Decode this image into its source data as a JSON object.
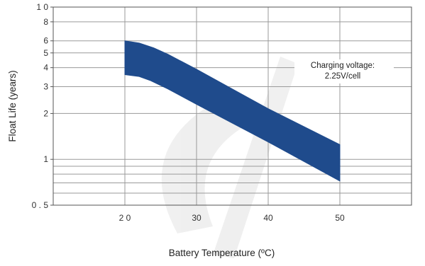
{
  "chart_data": {
    "type": "area",
    "title": "",
    "xlabel": "Battery Temperature (ºC)",
    "ylabel": "Float Life (years)",
    "xlim": [
      10,
      60
    ],
    "ylim": [
      0.5,
      10
    ],
    "y_scale": "log",
    "grid": true,
    "x_ticks": [
      {
        "value": 20,
        "label": "2 0"
      },
      {
        "value": 30,
        "label": "30"
      },
      {
        "value": 40,
        "label": "40"
      },
      {
        "value": 50,
        "label": "50"
      }
    ],
    "y_ticks": [
      {
        "value": 10,
        "label": "1 0"
      },
      {
        "value": 8,
        "label": "8"
      },
      {
        "value": 6,
        "label": "6"
      },
      {
        "value": 5,
        "label": "5"
      },
      {
        "value": 4,
        "label": "4"
      },
      {
        "value": 3,
        "label": "3"
      },
      {
        "value": 2,
        "label": "2"
      },
      {
        "value": 1,
        "label": "1"
      },
      {
        "value": 0.5,
        "label": "0 . 5"
      }
    ],
    "y_minor_gridlines": [
      0.9,
      0.8,
      0.7,
      0.6
    ],
    "band": {
      "color": "#1f4b8c",
      "upper": [
        {
          "x": 20,
          "y": 6.0
        },
        {
          "x": 22,
          "y": 5.8
        },
        {
          "x": 24,
          "y": 5.4
        },
        {
          "x": 26,
          "y": 4.9
        },
        {
          "x": 30,
          "y": 3.9
        },
        {
          "x": 40,
          "y": 2.15
        },
        {
          "x": 50,
          "y": 1.25
        }
      ],
      "lower": [
        {
          "x": 20,
          "y": 3.6
        },
        {
          "x": 22,
          "y": 3.5
        },
        {
          "x": 23.5,
          "y": 3.3
        },
        {
          "x": 26,
          "y": 2.9
        },
        {
          "x": 30,
          "y": 2.3
        },
        {
          "x": 40,
          "y": 1.3
        },
        {
          "x": 50,
          "y": 0.72
        }
      ]
    },
    "annotation": {
      "lines": [
        "Charging voltage:",
        "2.25V/cell"
      ]
    }
  }
}
